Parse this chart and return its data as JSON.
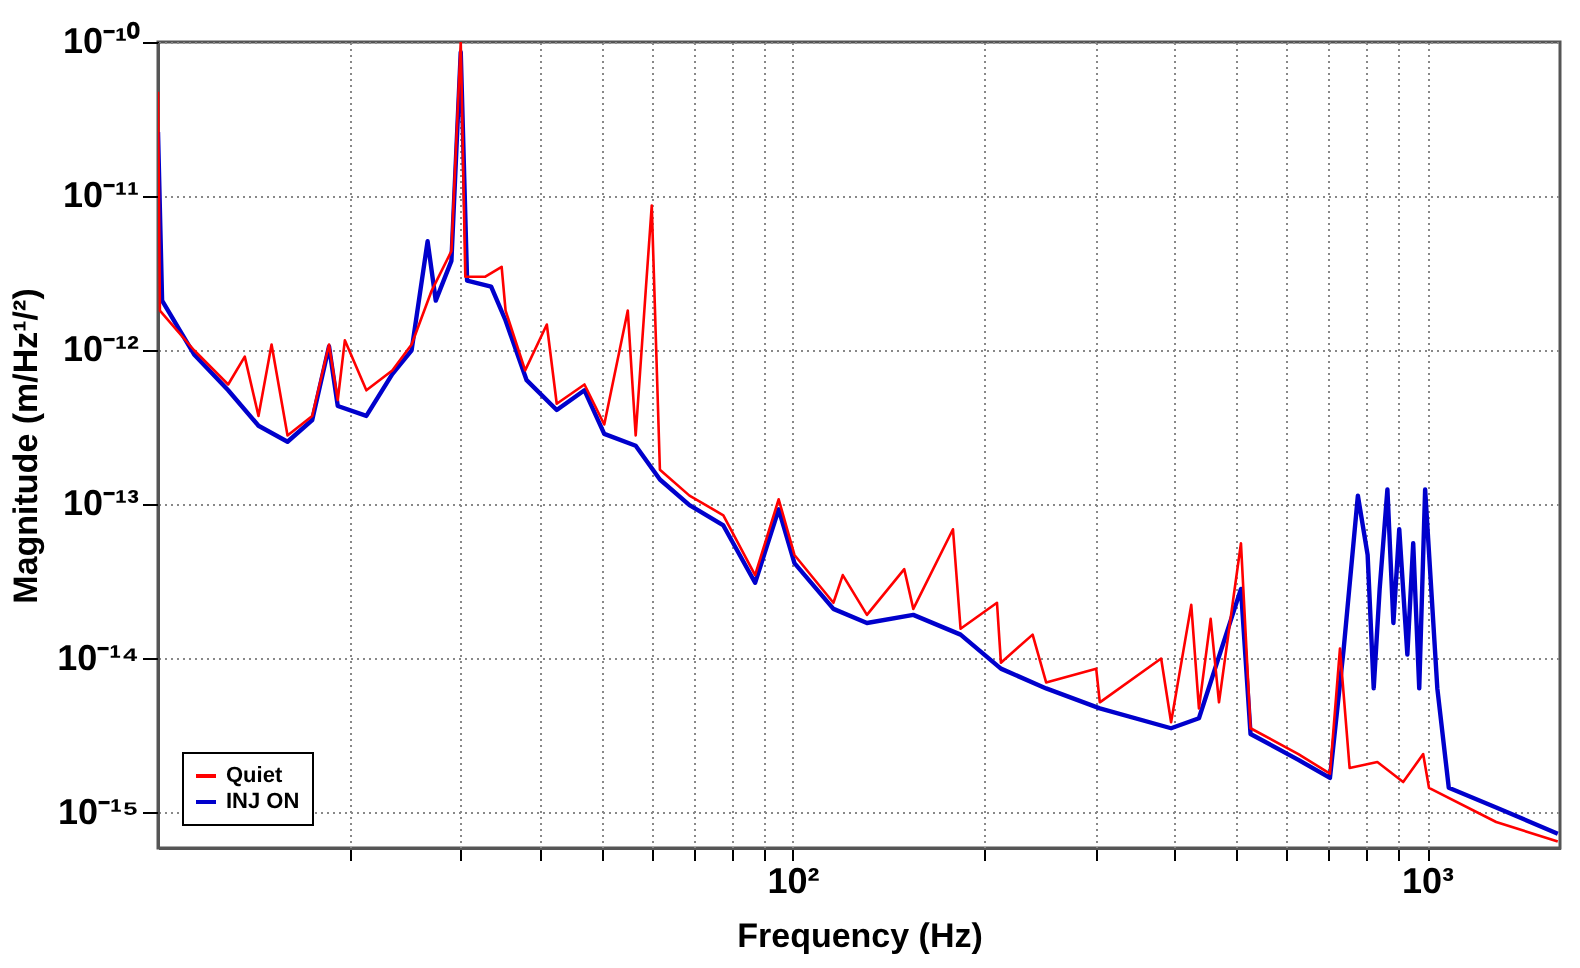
{
  "chart_data": {
    "type": "line",
    "xlabel": "Frequency (Hz)",
    "ylabel": "Magnitude (m/Hz¹/²)",
    "log": "xy",
    "grid": true,
    "legend": "bottom left",
    "line_style": "solid",
    "marker": "none",
    "xlim": [
      10,
      1620
    ],
    "ylim": [
      5.9e-16,
      1e-10
    ],
    "xticks": [
      {
        "value": 20,
        "label": null
      },
      {
        "value": 30,
        "label": null
      },
      {
        "value": 40,
        "label": null
      },
      {
        "value": 50,
        "label": null
      },
      {
        "value": 60,
        "label": null
      },
      {
        "value": 70,
        "label": null
      },
      {
        "value": 80,
        "label": null
      },
      {
        "value": 90,
        "label": null
      },
      {
        "value": 100,
        "label": "10²"
      },
      {
        "value": 200,
        "label": null
      },
      {
        "value": 300,
        "label": null
      },
      {
        "value": 400,
        "label": null
      },
      {
        "value": 500,
        "label": null
      },
      {
        "value": 600,
        "label": null
      },
      {
        "value": 700,
        "label": null
      },
      {
        "value": 800,
        "label": null
      },
      {
        "value": 900,
        "label": null
      },
      {
        "value": 1000,
        "label": "10³"
      }
    ],
    "yticks": [
      {
        "value": 1e-15,
        "label": "10⁻¹⁵"
      },
      {
        "value": 1e-14,
        "label": "10⁻¹⁴"
      },
      {
        "value": 1e-13,
        "label": "10⁻¹³"
      },
      {
        "value": 1e-12,
        "label": "10⁻¹²"
      },
      {
        "value": 1e-11,
        "label": "10⁻¹¹"
      },
      {
        "value": 1e-10,
        "label": "10⁻¹⁰"
      }
    ],
    "series": [
      {
        "name": "Quiet",
        "color": "#ff0000",
        "x": [
          10.0,
          10.07,
          11.4,
          12.9,
          13.7,
          14.4,
          15.1,
          16.0,
          17.5,
          18.6,
          19.2,
          19.7,
          21.3,
          23.4,
          25.1,
          27.0,
          29.0,
          30.0,
          30.5,
          32.8,
          34.8,
          35.3,
          37.9,
          41.0,
          42.5,
          47.0,
          50.5,
          55.0,
          56.6,
          58.7,
          60.0,
          61.8,
          68.8,
          77.8,
          87.3,
          95.1,
          100.7,
          116,
          120,
          131,
          150,
          155,
          179,
          184,
          210,
          213,
          239,
          251,
          301,
          305,
          381,
          395,
          425,
          437,
          456,
          470,
          509,
          527,
          627,
          703,
          729,
          755,
          835,
          917,
          986,
          1007,
          1285,
          1607
        ],
        "values": [
          4.75e-11,
          1.81e-12,
          1e-12,
          6e-13,
          9.1e-13,
          3.75e-13,
          1.09e-12,
          2.8e-13,
          3.75e-13,
          1.09e-12,
          4.75e-13,
          1.16e-12,
          5.5e-13,
          7.4e-13,
          1.09e-12,
          2.44e-12,
          4.4e-12,
          1e-10,
          3e-12,
          3e-12,
          3.48e-12,
          1.81e-12,
          7.4e-13,
          1.47e-12,
          4.5e-13,
          6e-13,
          3.3e-13,
          1.81e-12,
          2.8e-13,
          2.44e-12,
          8.7e-12,
          1.68e-13,
          1.14e-13,
          8.5e-14,
          3.48e-14,
          1.08e-13,
          4.7e-14,
          2.3e-14,
          3.48e-14,
          1.92e-14,
          3.8e-14,
          2.1e-14,
          6.9e-14,
          1.56e-14,
          2.3e-14,
          9.4e-15,
          1.43e-14,
          7e-15,
          8.6e-15,
          5.2e-15,
          1e-14,
          3.86e-15,
          2.23e-14,
          4.75e-15,
          1.81e-14,
          5.2e-15,
          5.6e-14,
          3.53e-15,
          2.4e-15,
          1.79e-15,
          1.16e-14,
          1.95e-15,
          2.13e-15,
          1.58e-15,
          2.4e-15,
          1.45e-15,
          8.7e-16,
          6.5e-16
        ]
      },
      {
        "name": "INJ ON",
        "color": "#0000cc",
        "x": [
          10.0,
          10.15,
          11.4,
          12.9,
          14.4,
          16.0,
          17.5,
          18.6,
          19.2,
          21.3,
          23.4,
          25.1,
          26.6,
          27.4,
          29.0,
          30.0,
          30.7,
          33.5,
          35.3,
          38.1,
          42.5,
          47.0,
          50.5,
          56.6,
          61.8,
          68.8,
          77.8,
          87.3,
          95.1,
          100.7,
          116,
          131,
          155,
          184,
          213,
          251,
          305,
          395,
          437,
          509,
          527,
          627,
          703,
          739,
          778,
          806,
          824,
          842,
          866,
          885,
          904,
          931,
          951,
          972,
          993,
          1038,
          1082,
          1285,
          1607
        ],
        "values": [
          2.6e-11,
          2.1e-12,
          9.4e-13,
          5.5e-13,
          3.24e-13,
          2.55e-13,
          3.53e-13,
          1.06e-12,
          4.35e-13,
          3.75e-13,
          7e-13,
          1e-12,
          5.1e-12,
          2.1e-12,
          3.8e-12,
          8.6e-11,
          2.83e-12,
          2.59e-12,
          1.56e-12,
          6.4e-13,
          4.1e-13,
          5.5e-13,
          2.87e-13,
          2.4e-13,
          1.45e-13,
          9.9e-14,
          7.3e-14,
          3.1e-14,
          9.3e-14,
          4.16e-14,
          2.1e-14,
          1.7e-14,
          1.92e-14,
          1.43e-14,
          8.6e-15,
          6.4e-15,
          4.75e-15,
          3.53e-15,
          4.1e-15,
          2.83e-14,
          3.24e-15,
          2.2e-15,
          1.68e-15,
          1.16e-14,
          1.14e-13,
          4.7e-14,
          6.4e-15,
          2.83e-14,
          1.25e-13,
          1.7e-14,
          6.9e-14,
          1.06e-14,
          5.6e-14,
          6.4e-15,
          1.25e-13,
          6.4e-15,
          1.45e-15,
          1.08e-15,
          7.3e-16
        ]
      }
    ]
  }
}
